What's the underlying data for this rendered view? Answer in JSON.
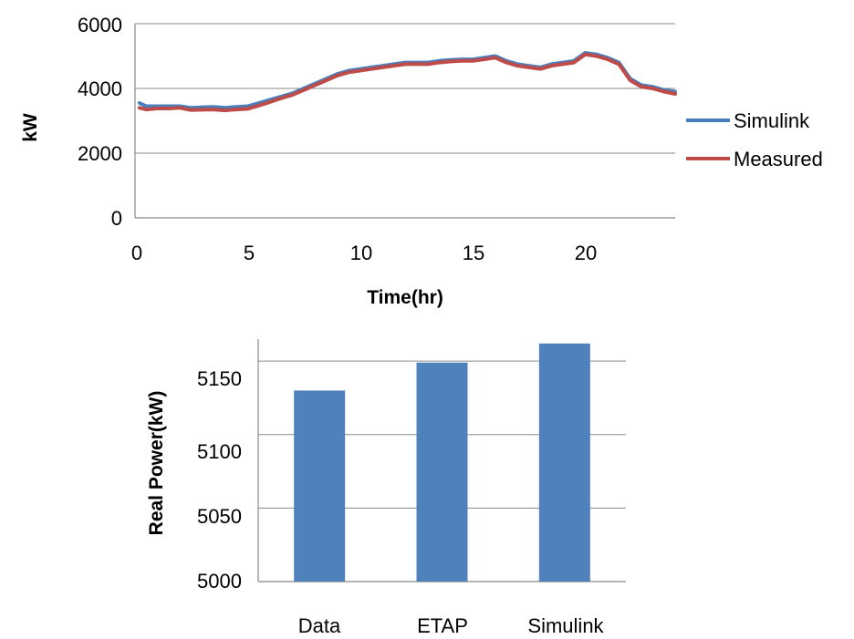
{
  "chart_data": [
    {
      "type": "line",
      "title": "",
      "xlabel": "Time(hr)",
      "ylabel": "kW",
      "xlim": [
        0,
        24
      ],
      "ylim": [
        0,
        6000
      ],
      "x_ticks": [
        "0",
        "5",
        "10",
        "15",
        "20"
      ],
      "y_ticks": [
        "0",
        "2000",
        "4000",
        "6000"
      ],
      "grid": "horizontal",
      "legend": "right",
      "series": [
        {
          "name": "Simulink",
          "color": "#4a7ebb",
          "x": [
            0.2,
            0.5,
            1,
            1.5,
            2,
            2.5,
            3,
            3.5,
            4,
            4.5,
            5,
            5.5,
            6,
            6.5,
            7,
            7.5,
            8,
            8.5,
            9,
            9.5,
            10,
            10.5,
            11,
            11.5,
            12,
            12.5,
            13,
            13.5,
            14,
            14.5,
            15,
            15.5,
            16,
            16.5,
            17,
            17.5,
            18,
            18.5,
            19,
            19.5,
            20,
            20.5,
            21,
            21.5,
            22,
            22.5,
            23,
            23.5,
            24
          ],
          "values": [
            3550,
            3450,
            3450,
            3450,
            3450,
            3400,
            3420,
            3430,
            3400,
            3430,
            3450,
            3550,
            3650,
            3750,
            3850,
            4000,
            4150,
            4300,
            4450,
            4550,
            4600,
            4650,
            4700,
            4750,
            4800,
            4800,
            4800,
            4850,
            4880,
            4900,
            4900,
            4950,
            5000,
            4850,
            4750,
            4700,
            4650,
            4750,
            4800,
            4850,
            5100,
            5050,
            4950,
            4800,
            4300,
            4100,
            4050,
            3950,
            3900
          ]
        },
        {
          "name": "Measured",
          "color": "#be4b48",
          "x": [
            0.2,
            0.5,
            1,
            1.5,
            2,
            2.5,
            3,
            3.5,
            4,
            4.5,
            5,
            5.5,
            6,
            6.5,
            7,
            7.5,
            8,
            8.5,
            9,
            9.5,
            10,
            10.5,
            11,
            11.5,
            12,
            12.5,
            13,
            13.5,
            14,
            14.5,
            15,
            15.5,
            16,
            16.5,
            17,
            17.5,
            18,
            18.5,
            19,
            19.5,
            20,
            20.5,
            21,
            21.5,
            22,
            22.5,
            23,
            23.5,
            24
          ],
          "values": [
            3400,
            3350,
            3380,
            3380,
            3400,
            3330,
            3340,
            3350,
            3320,
            3350,
            3370,
            3470,
            3580,
            3700,
            3800,
            3950,
            4100,
            4250,
            4400,
            4500,
            4550,
            4600,
            4650,
            4700,
            4750,
            4750,
            4750,
            4800,
            4830,
            4850,
            4850,
            4900,
            4950,
            4800,
            4700,
            4650,
            4600,
            4700,
            4750,
            4800,
            5050,
            5000,
            4900,
            4750,
            4250,
            4050,
            4000,
            3900,
            3830
          ]
        }
      ]
    },
    {
      "type": "bar",
      "title": "",
      "xlabel": "",
      "ylabel": "Real Power(kW)",
      "categories": [
        "Data",
        "ETAP",
        "Simulink"
      ],
      "values": [
        5130,
        5149,
        5162
      ],
      "ylim": [
        5000,
        5165
      ],
      "y_ticks": [
        "5000",
        "5050",
        "5100",
        "5150"
      ],
      "grid": "horizontal",
      "color": "#4f81bd"
    }
  ]
}
